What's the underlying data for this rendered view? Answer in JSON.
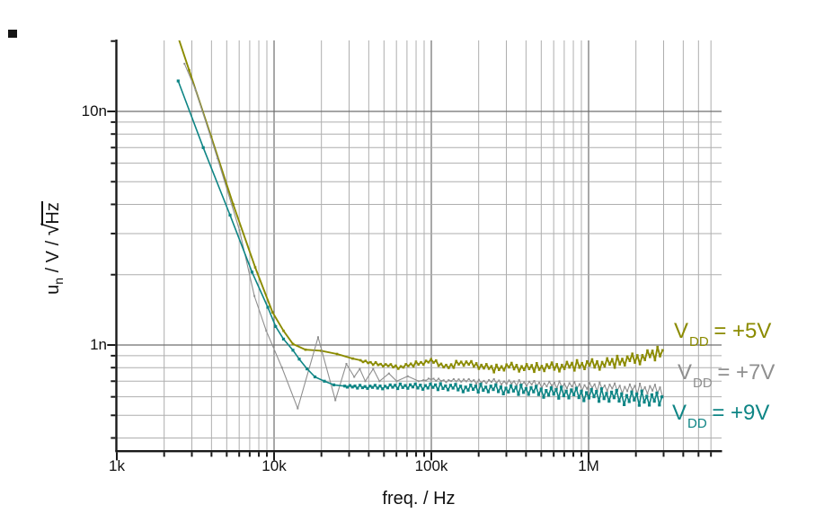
{
  "page": {
    "background": "#ffffff"
  },
  "stray_mark": {
    "color": "#151515"
  },
  "chart_data": {
    "type": "line",
    "title": "",
    "xlabel": "freq. / Hz",
    "ylabel": "u_n / V / sqrt(Hz)",
    "ylabel_parts": {
      "base": "u",
      "sub": "n",
      "mid": " / V / ",
      "radical": "√",
      "radicand": "Hz"
    },
    "x_axis": {
      "scale": "log",
      "unit": "Hz",
      "min": 1000,
      "max": 7000000,
      "major_ticks": [
        {
          "value": 1000,
          "label": "1k"
        },
        {
          "value": 10000,
          "label": "10k"
        },
        {
          "value": 100000,
          "label": "100k"
        },
        {
          "value": 1000000,
          "label": "1M"
        }
      ],
      "minor_ticks": [
        2000,
        3000,
        4000,
        5000,
        6000,
        7000,
        8000,
        9000,
        20000,
        30000,
        40000,
        50000,
        60000,
        70000,
        80000,
        90000,
        200000,
        300000,
        400000,
        500000,
        600000,
        700000,
        800000,
        900000,
        2000000,
        3000000,
        4000000,
        5000000,
        6000000
      ]
    },
    "y_axis": {
      "scale": "log",
      "unit": "nV/sqrt(Hz)",
      "min": 0.356,
      "max": 20.2,
      "major_ticks": [
        {
          "value": 10,
          "label": "10n"
        },
        {
          "value": 1,
          "label": "1n"
        }
      ],
      "minor_ticks": [
        20,
        9,
        8,
        7,
        6,
        5,
        4,
        3,
        2,
        0.9,
        0.8,
        0.7,
        0.6,
        0.5,
        0.4
      ]
    },
    "grid": {
      "major_color": "#6f6f6f",
      "minor_color": "#aeaeae",
      "major_width": 1.2,
      "minor_width": 1
    },
    "axis_color": "#1a1a1a",
    "jitter_pattern": [
      0.25,
      -0.55,
      0.8,
      -0.3,
      0.55,
      -0.9,
      1.0,
      -0.45,
      0.35,
      -0.75,
      0.6,
      -0.2,
      0.9,
      -0.6,
      0.45,
      -1.0
    ],
    "series": [
      {
        "name": "VDD = +5V",
        "label": {
          "v": "V",
          "sub": "DD",
          "rest": " = +5V"
        },
        "color": "#8b8b00",
        "line_width": 1.9,
        "marker_size": 2.6,
        "points_format": [
          "log10(freq_Hz)",
          "u_n (nV/sqrt(Hz))"
        ],
        "points": [
          [
            3.35,
            25
          ],
          [
            3.46,
            15
          ],
          [
            3.6,
            7.8
          ],
          [
            3.74,
            4.0
          ],
          [
            3.88,
            2.15
          ],
          [
            3.99,
            1.38
          ],
          [
            4.06,
            1.15
          ],
          [
            4.12,
            1.01
          ],
          [
            4.2,
            0.955
          ],
          [
            4.3,
            0.945
          ],
          [
            4.4,
            0.915
          ],
          [
            4.5,
            0.875
          ],
          [
            4.6,
            0.84
          ],
          [
            4.7,
            0.82
          ],
          [
            4.8,
            0.805
          ],
          [
            4.9,
            0.83
          ],
          [
            5.02,
            0.855
          ],
          [
            5.1,
            0.8
          ],
          [
            5.18,
            0.84
          ],
          [
            5.3,
            0.82
          ],
          [
            5.4,
            0.79
          ],
          [
            5.5,
            0.81
          ],
          [
            5.6,
            0.8
          ],
          [
            5.7,
            0.8
          ],
          [
            5.8,
            0.81
          ],
          [
            5.9,
            0.815
          ],
          [
            6.0,
            0.825
          ],
          [
            6.1,
            0.835
          ],
          [
            6.2,
            0.85
          ],
          [
            6.3,
            0.875
          ],
          [
            6.4,
            0.91
          ],
          [
            6.48,
            0.93
          ]
        ],
        "noise": {
          "start": 4.55,
          "step": 0.016,
          "amp_start": 0.012,
          "amp_end": 0.068
        }
      },
      {
        "name": "VDD = +7V",
        "label": {
          "v": "V",
          "sub": "DD",
          "rest": " = +7V"
        },
        "color": "#8f8f8f",
        "line_width": 1.1,
        "marker_size": 2.0,
        "points_format": [
          "log10(freq_Hz)",
          "u_n (nV/sqrt(Hz))"
        ],
        "points": [
          [
            3.43,
            16
          ],
          [
            3.5,
            12.4
          ],
          [
            3.64,
            6.3
          ],
          [
            3.78,
            3.1
          ],
          [
            3.875,
            1.62
          ],
          [
            3.95,
            1.15
          ],
          [
            4.05,
            0.8
          ],
          [
            4.15,
            0.535
          ],
          [
            4.28,
            1.08
          ],
          [
            4.39,
            0.58
          ],
          [
            4.46,
            0.83
          ],
          [
            4.51,
            0.73
          ],
          [
            4.545,
            0.79
          ],
          [
            4.58,
            0.7
          ],
          [
            4.63,
            0.79
          ],
          [
            4.67,
            0.7
          ],
          [
            4.73,
            0.755
          ],
          [
            4.78,
            0.7
          ],
          [
            4.85,
            0.735
          ],
          [
            4.92,
            0.7
          ],
          [
            5.0,
            0.715
          ],
          [
            5.1,
            0.7
          ],
          [
            5.2,
            0.71
          ],
          [
            5.3,
            0.695
          ],
          [
            5.4,
            0.7
          ],
          [
            5.5,
            0.69
          ],
          [
            5.6,
            0.685
          ],
          [
            5.7,
            0.68
          ],
          [
            5.8,
            0.675
          ],
          [
            5.9,
            0.67
          ],
          [
            6.0,
            0.665
          ],
          [
            6.1,
            0.66
          ],
          [
            6.2,
            0.655
          ],
          [
            6.3,
            0.65
          ],
          [
            6.4,
            0.645
          ],
          [
            6.48,
            0.64
          ]
        ],
        "noise": {
          "start": 4.95,
          "step": 0.016,
          "amp_start": 0.01,
          "amp_end": 0.058
        }
      },
      {
        "name": "VDD = +9V",
        "label": {
          "v": "V",
          "sub": "DD",
          "rest": " = +9V"
        },
        "color": "#0e8585",
        "line_width": 1.6,
        "marker_size": 3.2,
        "points_format": [
          "log10(freq_Hz)",
          "u_n (nV/sqrt(Hz))"
        ],
        "points": [
          [
            3.39,
            13.5
          ],
          [
            3.55,
            7.0
          ],
          [
            3.72,
            3.6
          ],
          [
            3.86,
            2.05
          ],
          [
            3.96,
            1.45
          ],
          [
            4.01,
            1.2
          ],
          [
            4.06,
            1.06
          ],
          [
            4.12,
            0.95
          ],
          [
            4.16,
            0.87
          ],
          [
            4.21,
            0.79
          ],
          [
            4.26,
            0.73
          ],
          [
            4.32,
            0.7
          ],
          [
            4.38,
            0.675
          ],
          [
            4.45,
            0.665
          ],
          [
            4.6,
            0.66
          ],
          [
            4.8,
            0.665
          ],
          [
            5.0,
            0.665
          ],
          [
            5.2,
            0.655
          ],
          [
            5.4,
            0.65
          ],
          [
            5.6,
            0.64
          ],
          [
            5.8,
            0.625
          ],
          [
            6.0,
            0.615
          ],
          [
            6.2,
            0.6
          ],
          [
            6.35,
            0.59
          ],
          [
            6.48,
            0.578
          ]
        ],
        "noise": {
          "start": 4.45,
          "step": 0.016,
          "amp_start": 0.012,
          "amp_end": 0.08
        }
      }
    ]
  }
}
